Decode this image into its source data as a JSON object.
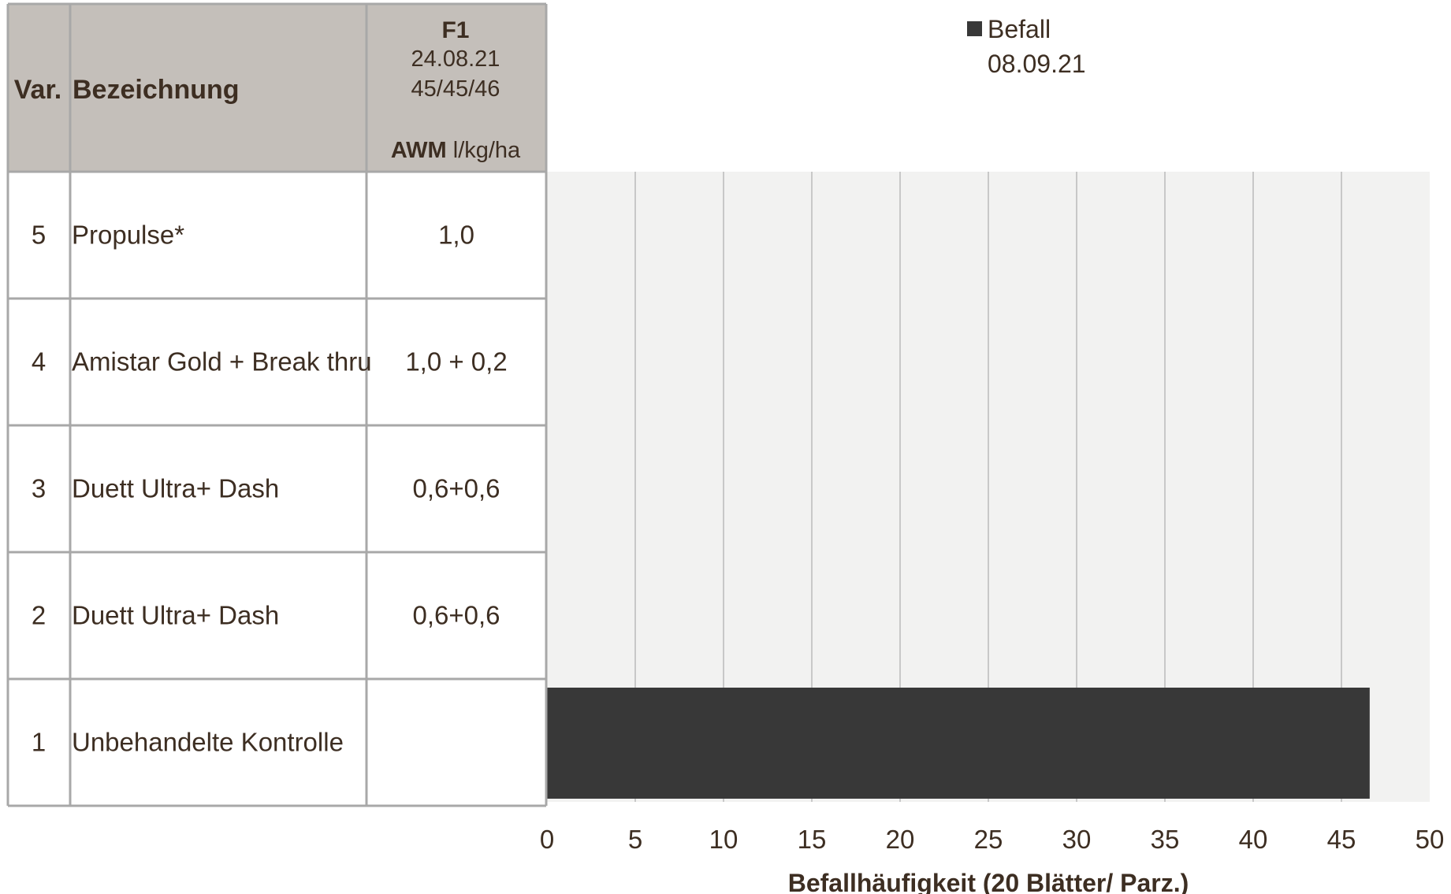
{
  "table": {
    "header": {
      "var": "Var.",
      "name": "Bezeichnung",
      "f1_title": "F1",
      "f1_date": "24.08.21",
      "f1_stage": "45/45/46",
      "awm_bold": "AWM",
      "awm_unit": " l/kg/ha"
    },
    "rows": [
      {
        "var": "5",
        "name": "Propulse*",
        "awm": "1,0"
      },
      {
        "var": "4",
        "name": "Amistar Gold + Break thru",
        "awm": "1,0 + 0,2"
      },
      {
        "var": "3",
        "name": "Duett Ultra+ Dash",
        "awm": "0,6+0,6"
      },
      {
        "var": "2",
        "name": "Duett Ultra+ Dash",
        "awm": "0,6+0,6"
      },
      {
        "var": "1",
        "name": "Unbehandelte Kontrolle",
        "awm": ""
      }
    ]
  },
  "colors": {
    "header_bg": "#c4bfba",
    "plot_bg": "#f2f2f1",
    "bar": "#383838",
    "axis_text": "#3d2e22",
    "grid": "#c8c8c8",
    "border": "#a8a8a8"
  },
  "chart_data": {
    "type": "bar",
    "orientation": "horizontal",
    "categories": [
      "5",
      "4",
      "3",
      "2",
      "1"
    ],
    "series": [
      {
        "name": "Befall",
        "name_sub": "08.09.21",
        "values": [
          0,
          0,
          0,
          0,
          46.6
        ]
      }
    ],
    "xlabel": "Befallhäufigkeit (20 Blätter/ Parz.)",
    "xlim": [
      0,
      50
    ],
    "xticks": [
      0,
      5,
      10,
      15,
      20,
      25,
      30,
      35,
      40,
      45,
      50
    ],
    "grid": true,
    "legend_position": "top-center"
  }
}
